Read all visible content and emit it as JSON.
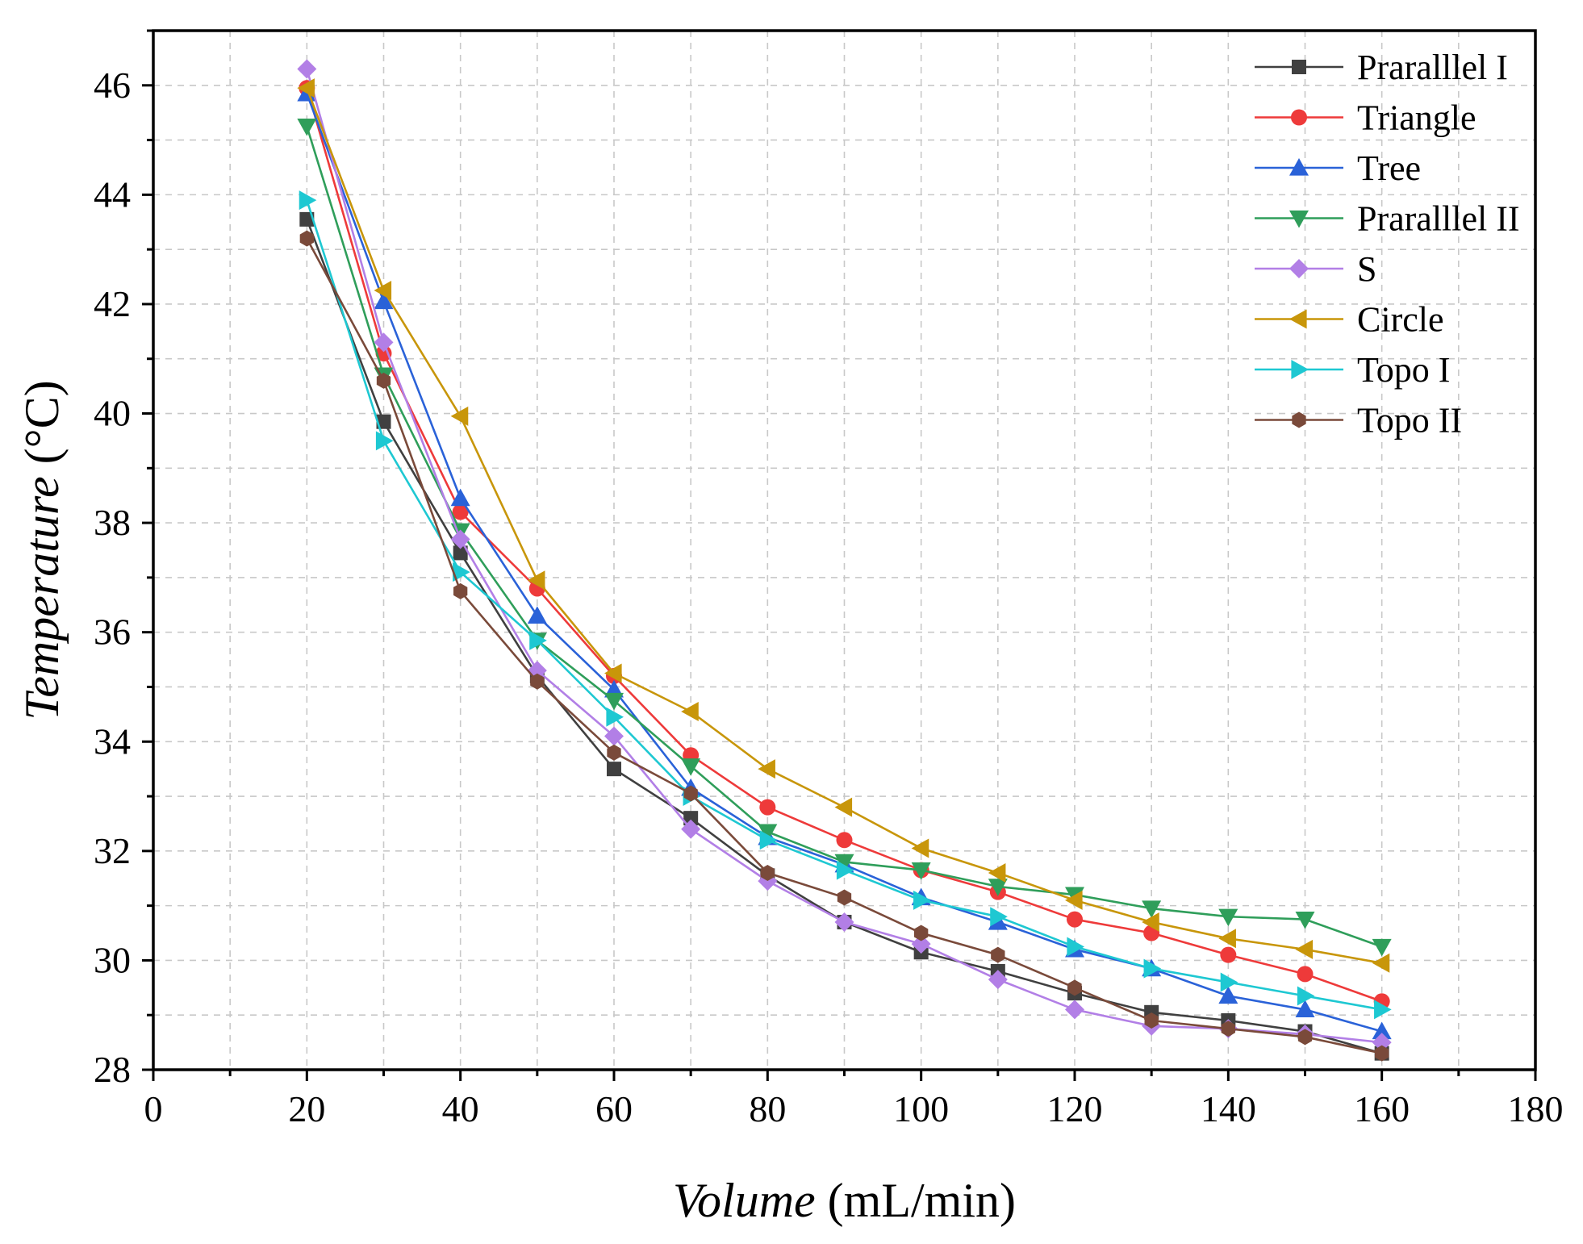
{
  "chart_data": {
    "type": "line",
    "title": "",
    "xlabel": {
      "italic": "Volume",
      "normal": " (mL/min)"
    },
    "ylabel": {
      "italic": "Temperature",
      "normal": " (°C)"
    },
    "xlim": [
      0,
      180
    ],
    "ylim": [
      28,
      47
    ],
    "xticks": [
      0,
      20,
      40,
      60,
      80,
      100,
      120,
      140,
      160,
      180
    ],
    "yticks": [
      28,
      30,
      32,
      34,
      36,
      38,
      40,
      42,
      44,
      46
    ],
    "grid": true,
    "legend_position": "top-right",
    "x": [
      20,
      30,
      40,
      50,
      60,
      70,
      80,
      90,
      100,
      110,
      120,
      130,
      140,
      150,
      160
    ],
    "series": [
      {
        "name": "Praralllel I",
        "color": "#404040",
        "marker": "square",
        "values": [
          43.55,
          39.85,
          37.45,
          35.2,
          33.5,
          32.6,
          31.55,
          30.7,
          30.15,
          29.8,
          29.4,
          29.05,
          28.9,
          28.7,
          28.3
        ]
      },
      {
        "name": "Triangle",
        "color": "#ee3a3a",
        "marker": "circle",
        "values": [
          45.95,
          41.1,
          38.2,
          36.8,
          35.2,
          33.75,
          32.8,
          32.2,
          31.65,
          31.25,
          30.75,
          30.5,
          30.1,
          29.75,
          29.25
        ]
      },
      {
        "name": "Tree",
        "color": "#2a62d8",
        "marker": "triangle-up",
        "values": [
          45.85,
          42.05,
          38.45,
          36.3,
          34.95,
          33.15,
          32.25,
          31.75,
          31.15,
          30.7,
          30.2,
          29.85,
          29.35,
          29.1,
          28.7
        ]
      },
      {
        "name": "Praralllel II",
        "color": "#2f9e5a",
        "marker": "triangle-down",
        "values": [
          45.25,
          40.7,
          37.85,
          35.85,
          34.75,
          33.55,
          32.35,
          31.8,
          31.65,
          31.35,
          31.2,
          30.95,
          30.8,
          30.75,
          30.25
        ]
      },
      {
        "name": "S",
        "color": "#b27fe6",
        "marker": "diamond",
        "values": [
          46.3,
          41.3,
          37.7,
          35.3,
          34.1,
          32.4,
          31.45,
          30.7,
          30.3,
          29.65,
          29.1,
          28.8,
          28.75,
          28.65,
          28.5
        ]
      },
      {
        "name": "Circle",
        "color": "#c8960a",
        "marker": "triangle-left",
        "values": [
          45.95,
          42.25,
          39.95,
          36.95,
          35.25,
          34.55,
          33.5,
          32.8,
          32.05,
          31.6,
          31.1,
          30.7,
          30.4,
          30.2,
          29.95
        ]
      },
      {
        "name": "Topo I",
        "color": "#1ec8d2",
        "marker": "triangle-right",
        "values": [
          43.9,
          39.5,
          37.1,
          35.85,
          34.45,
          33.0,
          32.2,
          31.65,
          31.1,
          30.8,
          30.25,
          29.85,
          29.6,
          29.35,
          29.1
        ]
      },
      {
        "name": "Topo II",
        "color": "#7a4a3a",
        "marker": "hexagon",
        "values": [
          43.2,
          40.6,
          36.75,
          35.1,
          33.8,
          33.05,
          31.6,
          31.15,
          30.5,
          30.1,
          29.5,
          28.9,
          28.75,
          28.6,
          28.3
        ]
      }
    ]
  }
}
